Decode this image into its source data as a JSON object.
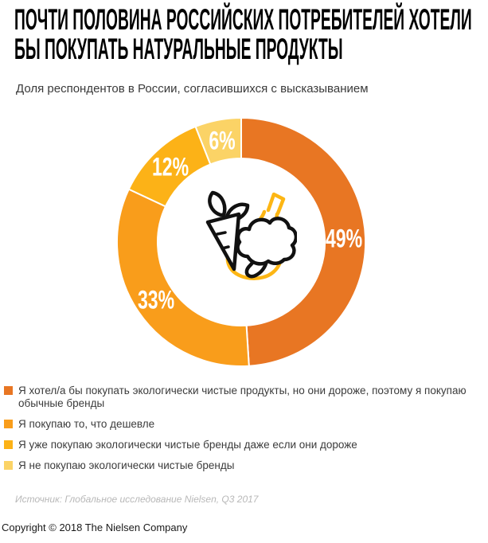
{
  "header": {
    "title_line1": "ПОЧТИ ПОЛОВИНА РОССИЙСКИХ ПОТРЕБИТЕЛЕЙ ХОТЕЛИ",
    "title_line2": "БЫ ПОКУПАТЬ НАТУРАЛЬНЫЕ ПРОДУКТЫ",
    "subtitle": "Доля респондентов в России, согласившихся с высказыванием"
  },
  "chart_data": {
    "type": "pie",
    "variant": "donut",
    "title": "ПОЧТИ ПОЛОВИНА РОССИЙСКИХ ПОТРЕБИТЕЛЕЙ ХОТЕЛИ БЫ ПОКУПАТЬ НАТУРАЛЬНЫЕ ПРОДУКТЫ",
    "subtitle": "Доля респондентов в России, согласившихся с высказыванием",
    "unit": "%",
    "start_angle_deg": 0,
    "direction": "clockwise",
    "inner_radius_ratio": 0.67,
    "legend_position": "bottom-left",
    "center_icon": "vegetables-icon",
    "separator_color": "#ffffff",
    "label_color": "#ffffff",
    "segments": [
      {
        "label": "Я хотел/а бы покупать экологически чистые продукты, но они дороже, поэтому я покупаю обычные бренды",
        "value": 49,
        "display": "49%",
        "color": "#E87623"
      },
      {
        "label": "Я покупаю то, что дешевле",
        "value": 33,
        "display": "33%",
        "color": "#F99D1B"
      },
      {
        "label": "Я уже покупаю экологически чистые бренды даже если они дороже",
        "value": 12,
        "display": "12%",
        "color": "#FCB217"
      },
      {
        "label": "Я не покупаю экологически чистые бренды",
        "value": 6,
        "display": "6%",
        "color": "#FBD366"
      }
    ]
  },
  "footer": {
    "source": "Источник: Глобальное исследование Nielsen, Q3 2017",
    "copyright": "Copyright © 2018 The Nielsen Company"
  }
}
